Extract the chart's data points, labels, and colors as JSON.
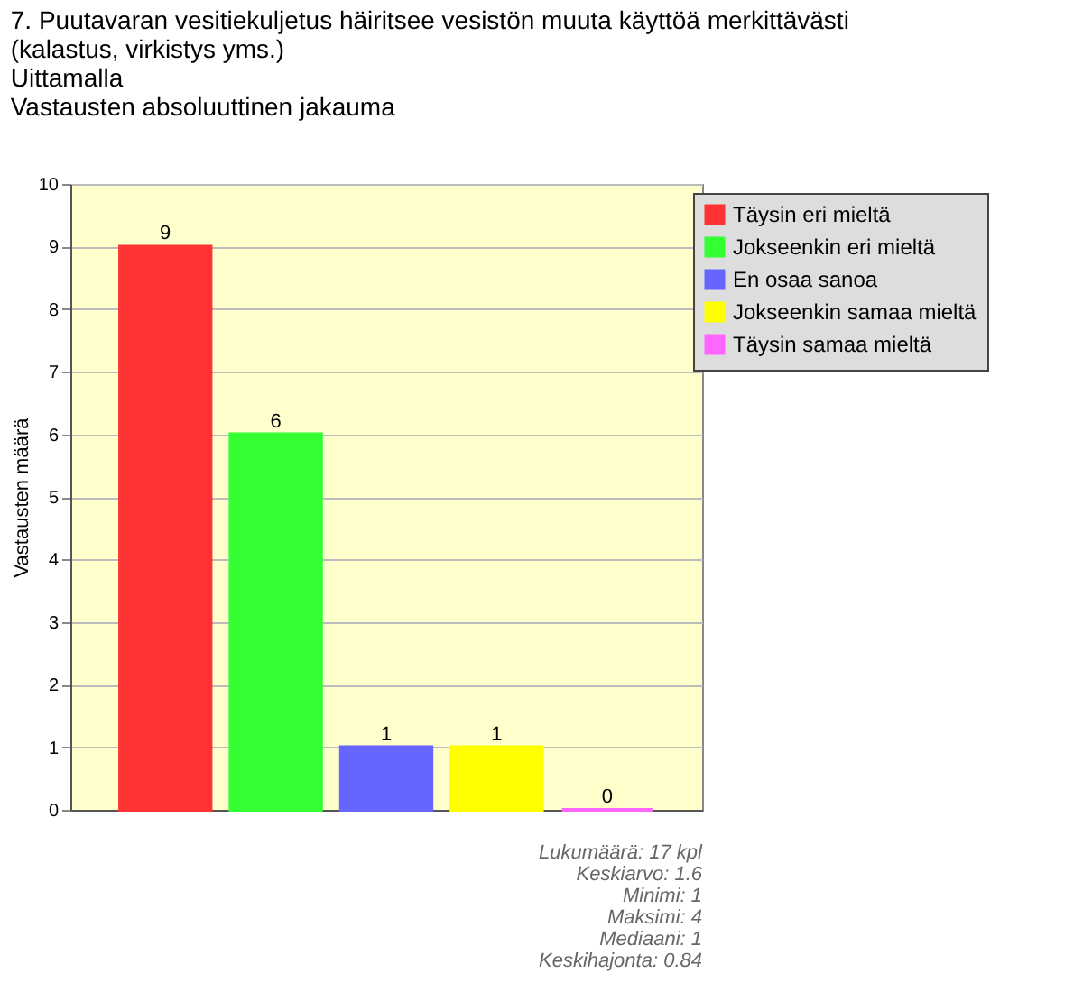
{
  "chart_data": {
    "type": "bar",
    "title": "7. Puutavaran vesitiekuljetus häiritsee vesistön muuta käyttöä merkittävästi (kalastus, virkistys yms.)",
    "subtitle": "Uittamalla",
    "annotations": [
      "Vastausten absoluuttinen jakauma",
      "Lukumäärä: 17 kpl",
      "Keskiarvo: 1.6",
      "Minimi: 1",
      "Maksimi: 4",
      "Mediaani: 1",
      "Keskihajonta: 0.84"
    ],
    "ylabel": "Vastausten määrä",
    "categories": [
      null,
      null,
      null,
      null,
      null
    ],
    "series": [
      {
        "name": "Täysin eri mieltä",
        "color": "#ff3333",
        "values": [
          9,
          null,
          null,
          null,
          null
        ]
      },
      {
        "name": "Jokseenkin eri mieltä",
        "color": "#33ff33",
        "values": [
          null,
          6,
          null,
          null,
          null
        ]
      },
      {
        "name": "En osaa sanoa",
        "color": "#6666ff",
        "values": [
          null,
          null,
          1,
          null,
          null
        ]
      },
      {
        "name": "Jokseenkin samaa mieltä",
        "color": "#ffff00",
        "values": [
          null,
          null,
          null,
          1,
          null
        ]
      },
      {
        "name": "Täysin samaa mieltä",
        "color": "#ff66ff",
        "values": [
          null,
          null,
          null,
          null,
          0
        ]
      }
    ],
    "ylim": [
      0,
      10
    ],
    "yticks": [
      0,
      1,
      2,
      3,
      4,
      5,
      6,
      7,
      8,
      9,
      10
    ],
    "grid": "y",
    "legend": "top right",
    "data_labels": true,
    "tick_labels": "y"
  }
}
